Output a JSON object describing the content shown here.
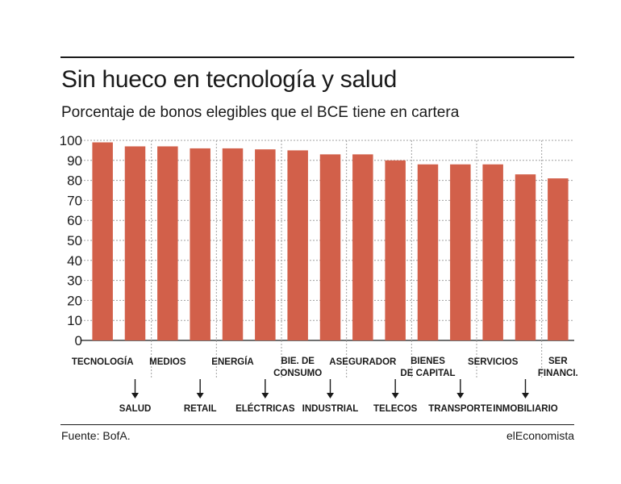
{
  "header": {
    "title": "Sin hueco en tecnología y salud",
    "subtitle": "Porcentaje de bonos elegibles que el BCE tiene en cartera"
  },
  "footer": {
    "source": "Fuente: BofA.",
    "brand": "elEconomista"
  },
  "colors": {
    "bar": "#d2604a",
    "grid": "#a0a0a0",
    "text": "#1a1a1a"
  },
  "chart_data": {
    "type": "bar",
    "categories": [
      [
        "TECNOLOGÍA"
      ],
      [
        "SALUD"
      ],
      [
        "MEDIOS"
      ],
      [
        "RETAIL"
      ],
      [
        "ENERGÍA"
      ],
      [
        "ELÉCTRICAS"
      ],
      [
        "BIE. DE",
        "CONSUMO"
      ],
      [
        "INDUSTRIAL"
      ],
      [
        "ASEGURADOR"
      ],
      [
        "TELECOS"
      ],
      [
        "BIENES",
        "DE CAPITAL"
      ],
      [
        "TRANSPORTE"
      ],
      [
        "SERVICIOS"
      ],
      [
        "INMOBILIARIO"
      ],
      [
        "SER",
        "FINANCI."
      ]
    ],
    "values": [
      99,
      97,
      97,
      96,
      96,
      95.5,
      95,
      93,
      93,
      90,
      88,
      88,
      88,
      83,
      81
    ],
    "ylim": [
      0,
      100
    ],
    "yticks": [
      0,
      10,
      20,
      30,
      40,
      50,
      60,
      70,
      80,
      90,
      100
    ],
    "grid": true
  }
}
